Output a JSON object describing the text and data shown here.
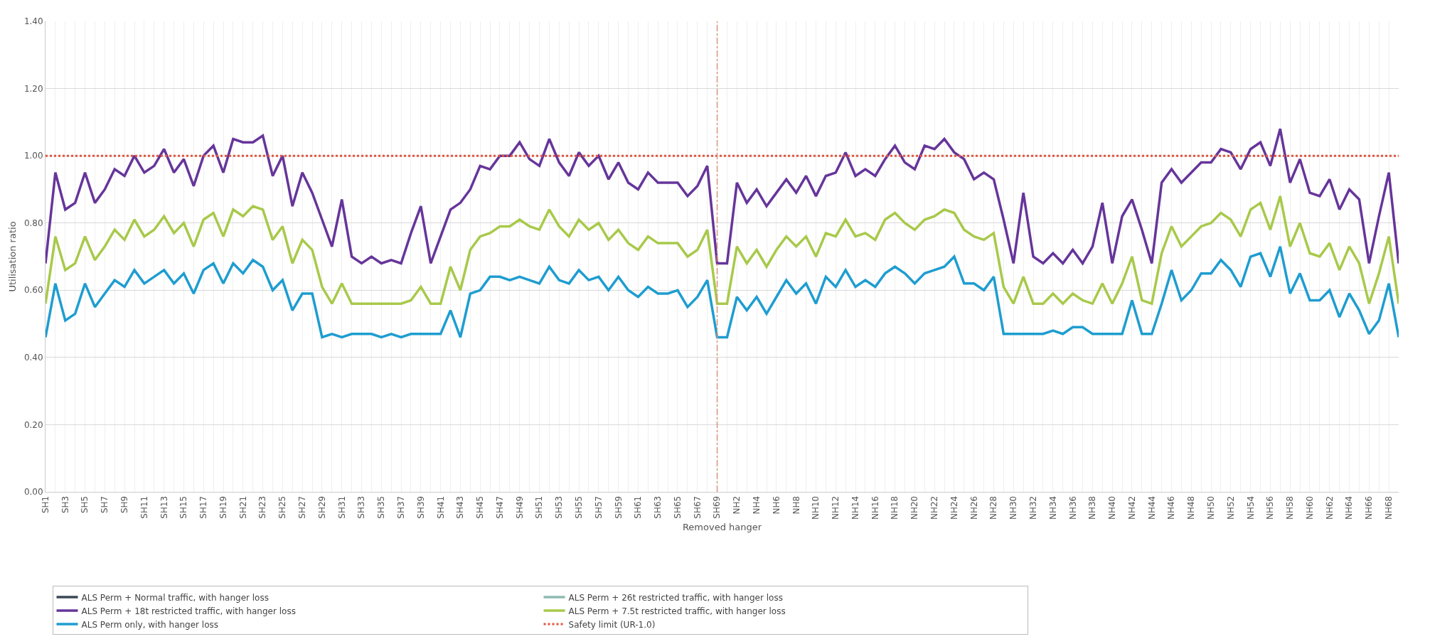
{
  "chart_data": {
    "type": "line",
    "xlabel": "Removed hanger",
    "ylabel": "Utilisation ratio",
    "categories": [
      "SH1",
      null,
      "SH3",
      null,
      "SH5",
      null,
      "SH7",
      null,
      "SH9",
      null,
      "SH11",
      null,
      "SH13",
      null,
      "SH15",
      null,
      "SH17",
      null,
      "SH19",
      null,
      "SH21",
      null,
      "SH23",
      null,
      "SH25",
      null,
      "SH27",
      null,
      "SH29",
      null,
      "SH31",
      null,
      "SH33",
      null,
      "SH35",
      null,
      "SH37",
      null,
      "SH39",
      null,
      "SH41",
      null,
      "SH43",
      null,
      "SH45",
      null,
      "SH47",
      null,
      "SH49",
      null,
      "SH51",
      null,
      "SH53",
      null,
      "SH55",
      null,
      "SH57",
      null,
      "SH59",
      null,
      "SH61",
      null,
      "SH63",
      null,
      "SH65",
      null,
      "SH67",
      null,
      "SH69",
      null,
      "NH2",
      null,
      "NH4",
      null,
      "NH6",
      null,
      "NH8",
      null,
      "NH10",
      null,
      "NH12",
      null,
      "NH14",
      null,
      "NH16",
      null,
      "NH18",
      null,
      "NH20",
      null,
      "NH22",
      null,
      "NH24",
      null,
      "NH26",
      null,
      "NH28",
      null,
      "NH30",
      null,
      "NH32",
      null,
      "NH34",
      null,
      "NH36",
      null,
      "NH38",
      null,
      "NH40",
      null,
      "NH42",
      null,
      "NH44",
      null,
      "NH46",
      null,
      "NH48",
      null,
      "NH50",
      null,
      "NH52",
      null,
      "NH54",
      null,
      "NH56",
      null,
      "NH58",
      null,
      "NH60",
      null,
      "NH62",
      null,
      "NH64",
      null,
      "NH66",
      null,
      "NH68",
      null
    ],
    "series": [
      {
        "name": "ALS Perm + Normal traffic, with hanger loss",
        "color": "#3b4854",
        "values": [
          null,
          null,
          null,
          null,
          null,
          null,
          null,
          null,
          null,
          null,
          null,
          null,
          null,
          null,
          null,
          null,
          null,
          null,
          null,
          null,
          null,
          null,
          null,
          null,
          null,
          null,
          null,
          null,
          null,
          null,
          null,
          null,
          null,
          null,
          null,
          null,
          null,
          null,
          null,
          null,
          null,
          null,
          null,
          null,
          null,
          null,
          null,
          null,
          null,
          null,
          null,
          null,
          null,
          null,
          null,
          null,
          null,
          null,
          null,
          null,
          null,
          null,
          null,
          null,
          null,
          null,
          null,
          null,
          null,
          null,
          null,
          null,
          null,
          null,
          null,
          null,
          null,
          null,
          null,
          null,
          null,
          null,
          null,
          null,
          null,
          null,
          null,
          null,
          null,
          null,
          null,
          null,
          null,
          null,
          null,
          null,
          null,
          null,
          null,
          null,
          null,
          null,
          null,
          null,
          null,
          null,
          null,
          null,
          null,
          null,
          null,
          null,
          null,
          null,
          null,
          null,
          null,
          null,
          null,
          null,
          null,
          null,
          null,
          null,
          null,
          null,
          null,
          null,
          null,
          null,
          null,
          null,
          null,
          null,
          null,
          null,
          null,
          null
        ]
      },
      {
        "name": "ALS Perm + 26t restricted traffic, with hanger loss",
        "color": "#8fbab2",
        "values": [
          null,
          null,
          null,
          null,
          null,
          null,
          null,
          null,
          null,
          null,
          null,
          null,
          null,
          null,
          null,
          null,
          null,
          null,
          null,
          null,
          null,
          null,
          null,
          null,
          null,
          null,
          null,
          null,
          null,
          null,
          null,
          null,
          null,
          null,
          null,
          null,
          null,
          null,
          null,
          null,
          null,
          null,
          null,
          null,
          null,
          null,
          null,
          null,
          null,
          null,
          null,
          null,
          null,
          null,
          null,
          null,
          null,
          null,
          null,
          null,
          null,
          null,
          null,
          null,
          null,
          null,
          null,
          null,
          null,
          null,
          null,
          null,
          null,
          null,
          null,
          null,
          null,
          null,
          null,
          null,
          null,
          null,
          null,
          null,
          null,
          null,
          null,
          null,
          null,
          null,
          null,
          null,
          null,
          null,
          null,
          null,
          null,
          null,
          null,
          null,
          null,
          null,
          null,
          null,
          null,
          null,
          null,
          null,
          null,
          null,
          null,
          null,
          null,
          null,
          null,
          null,
          null,
          null,
          null,
          null,
          null,
          null,
          null,
          null,
          null,
          null,
          null,
          null,
          null,
          null,
          null,
          null,
          null,
          null,
          null,
          null,
          null,
          null
        ]
      },
      {
        "name": "ALS Perm + 18t restricted traffic, with hanger loss",
        "color": "#66359a",
        "values": [
          0.68,
          0.95,
          0.84,
          0.86,
          0.95,
          0.86,
          0.9,
          0.96,
          0.94,
          1.0,
          0.95,
          0.97,
          1.02,
          0.95,
          0.99,
          0.91,
          1.0,
          1.03,
          0.95,
          1.05,
          1.04,
          1.04,
          1.06,
          0.94,
          1.0,
          0.85,
          0.95,
          0.89,
          0.81,
          0.73,
          0.87,
          0.7,
          0.68,
          0.7,
          0.68,
          0.69,
          0.68,
          0.77,
          0.85,
          0.68,
          0.76,
          0.84,
          0.86,
          0.9,
          0.97,
          0.96,
          1.0,
          1.0,
          1.04,
          0.99,
          0.97,
          1.05,
          0.98,
          0.94,
          1.01,
          0.97,
          1.0,
          0.93,
          0.98,
          0.92,
          0.9,
          0.95,
          0.92,
          0.92,
          0.92,
          0.88,
          0.91,
          0.97,
          0.68,
          0.68,
          0.92,
          0.86,
          0.9,
          0.85,
          0.89,
          0.93,
          0.89,
          0.94,
          0.88,
          0.94,
          0.95,
          1.01,
          0.94,
          0.96,
          0.94,
          0.99,
          1.03,
          0.98,
          0.96,
          1.03,
          1.02,
          1.05,
          1.01,
          0.99,
          0.93,
          0.95,
          0.93,
          0.81,
          0.68,
          0.89,
          0.7,
          0.68,
          0.71,
          0.68,
          0.72,
          0.68,
          0.73,
          0.86,
          0.68,
          0.82,
          0.87,
          0.78,
          0.68,
          0.92,
          0.96,
          0.92,
          0.95,
          0.98,
          0.98,
          1.02,
          1.01,
          0.96,
          1.02,
          1.04,
          0.97,
          1.08,
          0.92,
          0.99,
          0.89,
          0.88,
          0.93,
          0.84,
          0.9,
          0.87,
          0.68,
          0.82,
          0.95,
          0.68
        ]
      },
      {
        "name": "ALS Perm + 7.5t restricted traffic, with hanger loss",
        "color": "#a8c94a",
        "values": [
          0.56,
          0.76,
          0.66,
          0.68,
          0.76,
          0.69,
          0.73,
          0.78,
          0.75,
          0.81,
          0.76,
          0.78,
          0.82,
          0.77,
          0.8,
          0.73,
          0.81,
          0.83,
          0.76,
          0.84,
          0.82,
          0.85,
          0.84,
          0.75,
          0.79,
          0.68,
          0.75,
          0.72,
          0.61,
          0.56,
          0.62,
          0.56,
          0.56,
          0.56,
          0.56,
          0.56,
          0.56,
          0.57,
          0.61,
          0.56,
          0.56,
          0.67,
          0.6,
          0.72,
          0.76,
          0.77,
          0.79,
          0.79,
          0.81,
          0.79,
          0.78,
          0.84,
          0.79,
          0.76,
          0.81,
          0.78,
          0.8,
          0.75,
          0.78,
          0.74,
          0.72,
          0.76,
          0.74,
          0.74,
          0.74,
          0.7,
          0.72,
          0.78,
          0.56,
          0.56,
          0.73,
          0.68,
          0.72,
          0.67,
          0.72,
          0.76,
          0.73,
          0.76,
          0.7,
          0.77,
          0.76,
          0.81,
          0.76,
          0.77,
          0.75,
          0.81,
          0.83,
          0.8,
          0.78,
          0.81,
          0.82,
          0.84,
          0.83,
          0.78,
          0.76,
          0.75,
          0.77,
          0.61,
          0.56,
          0.64,
          0.56,
          0.56,
          0.59,
          0.56,
          0.59,
          0.57,
          0.56,
          0.62,
          0.56,
          0.62,
          0.7,
          0.57,
          0.56,
          0.71,
          0.79,
          0.73,
          0.76,
          0.79,
          0.8,
          0.83,
          0.81,
          0.76,
          0.84,
          0.86,
          0.78,
          0.88,
          0.73,
          0.8,
          0.71,
          0.7,
          0.74,
          0.66,
          0.73,
          0.68,
          0.56,
          0.65,
          0.76,
          0.56
        ]
      },
      {
        "name": "ALS Perm only, with hanger loss",
        "color": "#1e9dd0",
        "values": [
          0.46,
          0.62,
          0.51,
          0.53,
          0.62,
          0.55,
          0.59,
          0.63,
          0.61,
          0.66,
          0.62,
          0.64,
          0.66,
          0.62,
          0.65,
          0.59,
          0.66,
          0.68,
          0.62,
          0.68,
          0.65,
          0.69,
          0.67,
          0.6,
          0.63,
          0.54,
          0.59,
          0.59,
          0.46,
          0.47,
          0.46,
          0.47,
          0.47,
          0.47,
          0.46,
          0.47,
          0.46,
          0.47,
          0.47,
          0.47,
          0.47,
          0.54,
          0.46,
          0.59,
          0.6,
          0.64,
          0.64,
          0.63,
          0.64,
          0.63,
          0.62,
          0.67,
          0.63,
          0.62,
          0.66,
          0.63,
          0.64,
          0.6,
          0.64,
          0.6,
          0.58,
          0.61,
          0.59,
          0.59,
          0.6,
          0.55,
          0.58,
          0.63,
          0.46,
          0.46,
          0.58,
          0.54,
          0.58,
          0.53,
          0.58,
          0.63,
          0.59,
          0.62,
          0.56,
          0.64,
          0.61,
          0.66,
          0.61,
          0.63,
          0.61,
          0.65,
          0.67,
          0.65,
          0.62,
          0.65,
          0.66,
          0.67,
          0.7,
          0.62,
          0.62,
          0.6,
          0.64,
          0.47,
          0.47,
          0.47,
          0.47,
          0.47,
          0.48,
          0.47,
          0.49,
          0.49,
          0.47,
          0.47,
          0.47,
          0.47,
          0.57,
          0.47,
          0.47,
          0.56,
          0.66,
          0.57,
          0.6,
          0.65,
          0.65,
          0.69,
          0.66,
          0.61,
          0.7,
          0.71,
          0.64,
          0.73,
          0.59,
          0.65,
          0.57,
          0.57,
          0.6,
          0.52,
          0.59,
          0.54,
          0.47,
          0.51,
          0.62,
          0.46
        ]
      }
    ],
    "ylim": [
      0,
      1.4
    ],
    "yticks": [
      {
        "value": 0,
        "label": "0.00"
      },
      {
        "value": 0.2,
        "label": "0.20"
      },
      {
        "value": 0.4,
        "label": "0.40"
      },
      {
        "value": 0.6,
        "label": "0.60"
      },
      {
        "value": 0.8,
        "label": "0.80"
      },
      {
        "value": 1,
        "label": "1.00"
      },
      {
        "value": 1.2,
        "label": "1.20"
      },
      {
        "value": 1.4,
        "label": "1.40"
      }
    ],
    "ref_lines": [
      {
        "axis": "y",
        "value": 1,
        "label": "Safety limit (UR-1.0)",
        "color": "#e2553f",
        "line_style": "dotted"
      },
      {
        "axis": "x",
        "value": "SH69",
        "label": null,
        "color": "#d9947a",
        "line_style": "dashed"
      }
    ],
    "grid": true,
    "legend": "bottom",
    "marker": "none",
    "line_style": "solid"
  }
}
